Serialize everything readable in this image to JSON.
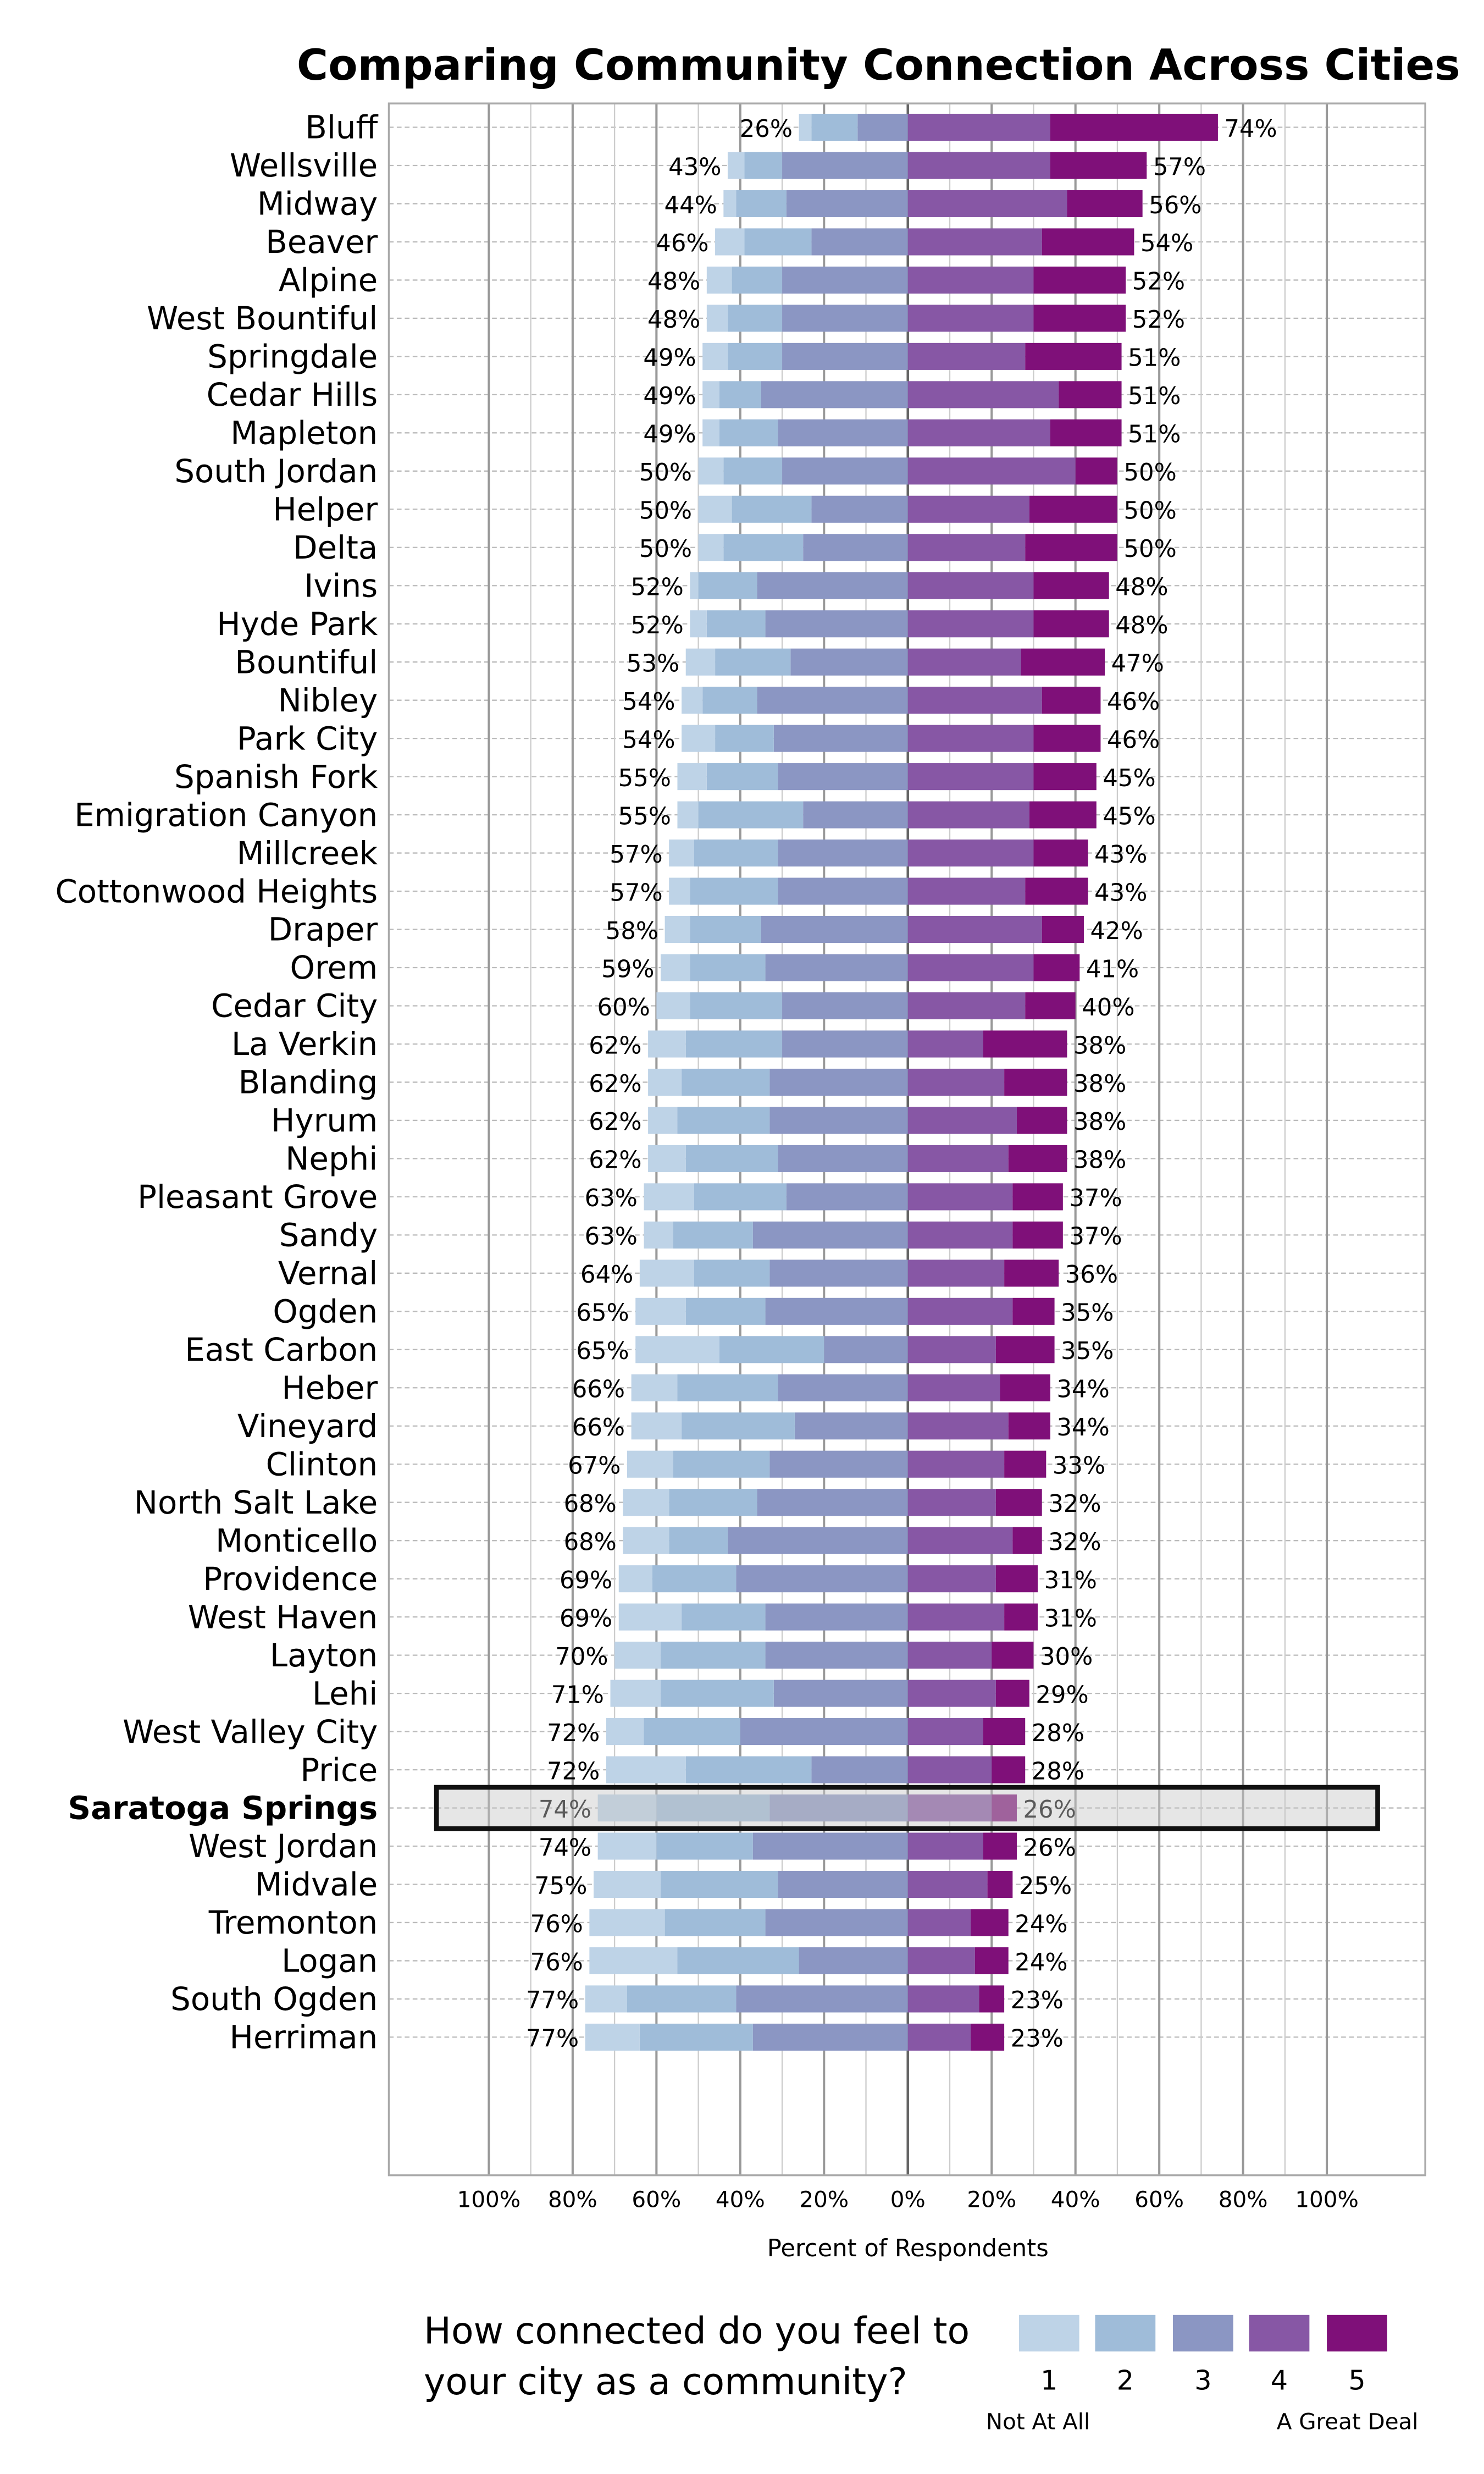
{
  "chart_data": {
    "type": "bar",
    "subtype": "diverging-stacked-horizontal",
    "title": "Comparing Community Connection Across Cities",
    "xlabel": "Percent of Respondents",
    "xlim": [
      -100,
      100
    ],
    "x_tick_labels": [
      "100%",
      "80%",
      "60%",
      "40%",
      "20%",
      "0%",
      "20%",
      "40%",
      "60%",
      "80%",
      "100%"
    ],
    "grid": true,
    "highlighted_category": "Saratoga Springs",
    "legend": {
      "title": "How connected do you feel to your city as a community?",
      "placement": "bottom",
      "levels": [
        "1",
        "2",
        "3",
        "4",
        "5"
      ],
      "low_label": "Not At All",
      "high_label": "A Great Deal",
      "colors": [
        "#bed3e7",
        "#9fbcd9",
        "#8b96c3",
        "#8757a5",
        "#7f1079"
      ]
    },
    "series_order": [
      "1",
      "2",
      "3",
      "4",
      "5"
    ],
    "rows": [
      {
        "city": "Bluff",
        "v": [
          3,
          11,
          12,
          34,
          40
        ],
        "neg": "26%",
        "pos": "74%"
      },
      {
        "city": "Wellsville",
        "v": [
          4,
          9,
          30,
          34,
          23
        ],
        "neg": "43%",
        "pos": "57%"
      },
      {
        "city": "Midway",
        "v": [
          3,
          12,
          29,
          38,
          18
        ],
        "neg": "44%",
        "pos": "56%"
      },
      {
        "city": "Beaver",
        "v": [
          7,
          16,
          23,
          32,
          22
        ],
        "neg": "46%",
        "pos": "54%"
      },
      {
        "city": "Alpine",
        "v": [
          6,
          12,
          30,
          30,
          22
        ],
        "neg": "48%",
        "pos": "52%"
      },
      {
        "city": "West Bountiful",
        "v": [
          5,
          13,
          30,
          30,
          22
        ],
        "neg": "48%",
        "pos": "52%"
      },
      {
        "city": "Springdale",
        "v": [
          6,
          13,
          30,
          28,
          23
        ],
        "neg": "49%",
        "pos": "51%"
      },
      {
        "city": "Cedar Hills",
        "v": [
          4,
          10,
          35,
          36,
          15
        ],
        "neg": "49%",
        "pos": "51%"
      },
      {
        "city": "Mapleton",
        "v": [
          4,
          14,
          31,
          34,
          17
        ],
        "neg": "49%",
        "pos": "51%"
      },
      {
        "city": "South Jordan",
        "v": [
          6,
          14,
          30,
          40,
          10
        ],
        "neg": "50%",
        "pos": "50%"
      },
      {
        "city": "Helper",
        "v": [
          8,
          19,
          23,
          29,
          21
        ],
        "neg": "50%",
        "pos": "50%"
      },
      {
        "city": "Delta",
        "v": [
          6,
          19,
          25,
          28,
          22
        ],
        "neg": "50%",
        "pos": "50%"
      },
      {
        "city": "Ivins",
        "v": [
          2,
          14,
          36,
          30,
          18
        ],
        "neg": "52%",
        "pos": "48%"
      },
      {
        "city": "Hyde Park",
        "v": [
          4,
          14,
          34,
          30,
          18
        ],
        "neg": "52%",
        "pos": "48%"
      },
      {
        "city": "Bountiful",
        "v": [
          7,
          18,
          28,
          27,
          20
        ],
        "neg": "53%",
        "pos": "47%"
      },
      {
        "city": "Nibley",
        "v": [
          5,
          13,
          36,
          32,
          14
        ],
        "neg": "54%",
        "pos": "46%"
      },
      {
        "city": "Park City",
        "v": [
          8,
          14,
          32,
          30,
          16
        ],
        "neg": "54%",
        "pos": "46%"
      },
      {
        "city": "Spanish Fork",
        "v": [
          7,
          17,
          31,
          30,
          15
        ],
        "neg": "55%",
        "pos": "45%"
      },
      {
        "city": "Emigration Canyon",
        "v": [
          5,
          25,
          25,
          29,
          16
        ],
        "neg": "55%",
        "pos": "45%"
      },
      {
        "city": "Millcreek",
        "v": [
          6,
          20,
          31,
          30,
          13
        ],
        "neg": "57%",
        "pos": "43%"
      },
      {
        "city": "Cottonwood Heights",
        "v": [
          5,
          21,
          31,
          28,
          15
        ],
        "neg": "57%",
        "pos": "43%"
      },
      {
        "city": "Draper",
        "v": [
          6,
          17,
          35,
          32,
          10
        ],
        "neg": "58%",
        "pos": "42%"
      },
      {
        "city": "Orem",
        "v": [
          7,
          18,
          34,
          30,
          11
        ],
        "neg": "59%",
        "pos": "41%"
      },
      {
        "city": "Cedar City",
        "v": [
          8,
          22,
          30,
          28,
          12
        ],
        "neg": "60%",
        "pos": "40%"
      },
      {
        "city": "La Verkin",
        "v": [
          9,
          23,
          30,
          18,
          20
        ],
        "neg": "62%",
        "pos": "38%"
      },
      {
        "city": "Blanding",
        "v": [
          8,
          21,
          33,
          23,
          15
        ],
        "neg": "62%",
        "pos": "38%"
      },
      {
        "city": "Hyrum",
        "v": [
          7,
          22,
          33,
          26,
          12
        ],
        "neg": "62%",
        "pos": "38%"
      },
      {
        "city": "Nephi",
        "v": [
          9,
          22,
          31,
          24,
          14
        ],
        "neg": "62%",
        "pos": "38%"
      },
      {
        "city": "Pleasant Grove",
        "v": [
          12,
          22,
          29,
          25,
          12
        ],
        "neg": "63%",
        "pos": "37%"
      },
      {
        "city": "Sandy",
        "v": [
          7,
          19,
          37,
          25,
          12
        ],
        "neg": "63%",
        "pos": "37%"
      },
      {
        "city": "Vernal",
        "v": [
          13,
          18,
          33,
          23,
          13
        ],
        "neg": "64%",
        "pos": "36%"
      },
      {
        "city": "Ogden",
        "v": [
          12,
          19,
          34,
          25,
          10
        ],
        "neg": "65%",
        "pos": "35%"
      },
      {
        "city": "East Carbon",
        "v": [
          20,
          25,
          20,
          21,
          14
        ],
        "neg": "65%",
        "pos": "35%"
      },
      {
        "city": "Heber",
        "v": [
          11,
          24,
          31,
          22,
          12
        ],
        "neg": "66%",
        "pos": "34%"
      },
      {
        "city": "Vineyard",
        "v": [
          12,
          27,
          27,
          24,
          10
        ],
        "neg": "66%",
        "pos": "34%"
      },
      {
        "city": "Clinton",
        "v": [
          11,
          23,
          33,
          23,
          10
        ],
        "neg": "67%",
        "pos": "33%"
      },
      {
        "city": "North Salt Lake",
        "v": [
          11,
          21,
          36,
          21,
          11
        ],
        "neg": "68%",
        "pos": "32%"
      },
      {
        "city": "Monticello",
        "v": [
          11,
          14,
          43,
          25,
          7
        ],
        "neg": "68%",
        "pos": "32%"
      },
      {
        "city": "Providence",
        "v": [
          8,
          20,
          41,
          21,
          10
        ],
        "neg": "69%",
        "pos": "31%"
      },
      {
        "city": "West Haven",
        "v": [
          15,
          20,
          34,
          23,
          8
        ],
        "neg": "69%",
        "pos": "31%"
      },
      {
        "city": "Layton",
        "v": [
          11,
          25,
          34,
          20,
          10
        ],
        "neg": "70%",
        "pos": "30%"
      },
      {
        "city": "Lehi",
        "v": [
          12,
          27,
          32,
          21,
          8
        ],
        "neg": "71%",
        "pos": "29%"
      },
      {
        "city": "West Valley City",
        "v": [
          9,
          23,
          40,
          18,
          10
        ],
        "neg": "72%",
        "pos": "28%"
      },
      {
        "city": "Price",
        "v": [
          19,
          30,
          23,
          20,
          8
        ],
        "neg": "72%",
        "pos": "28%"
      },
      {
        "city": "Saratoga Springs",
        "v": [
          14,
          27,
          33,
          20,
          6
        ],
        "neg": "74%",
        "pos": "26%"
      },
      {
        "city": "West Jordan",
        "v": [
          14,
          23,
          37,
          18,
          8
        ],
        "neg": "74%",
        "pos": "26%"
      },
      {
        "city": "Midvale",
        "v": [
          16,
          28,
          31,
          19,
          6
        ],
        "neg": "75%",
        "pos": "25%"
      },
      {
        "city": "Tremonton",
        "v": [
          18,
          24,
          34,
          15,
          9
        ],
        "neg": "76%",
        "pos": "24%"
      },
      {
        "city": "Logan",
        "v": [
          21,
          29,
          26,
          16,
          8
        ],
        "neg": "76%",
        "pos": "24%"
      },
      {
        "city": "South Ogden",
        "v": [
          10,
          26,
          41,
          17,
          6
        ],
        "neg": "77%",
        "pos": "23%"
      },
      {
        "city": "Herriman",
        "v": [
          13,
          27,
          37,
          15,
          8
        ],
        "neg": "77%",
        "pos": "23%"
      }
    ]
  }
}
